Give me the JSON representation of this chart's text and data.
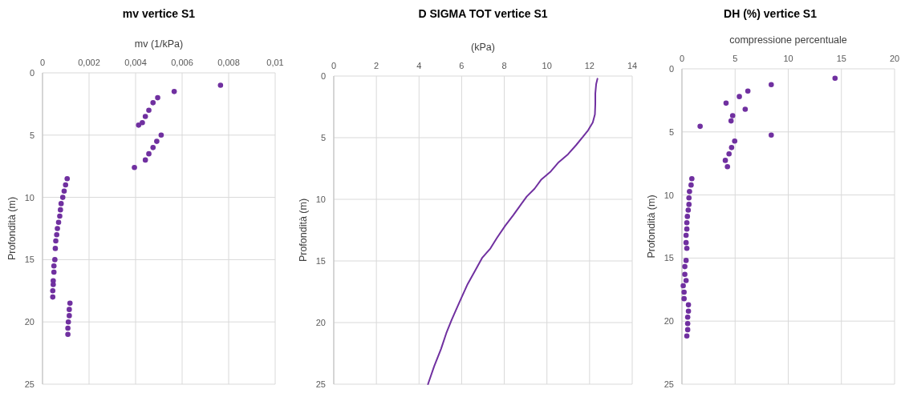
{
  "chart_data": [
    {
      "type": "scatter",
      "title": "mv vertice S1",
      "xlabel": "mv (1/kPa)",
      "ylabel": "Profondità (m)",
      "xlim": [
        0,
        0.01
      ],
      "xticks": [
        0,
        {
          "value": 0.002,
          "label": "0,002"
        },
        {
          "value": 0.004,
          "label": "0,004"
        },
        {
          "value": 0.006,
          "label": "0,006"
        },
        {
          "value": 0.008,
          "label": "0,008"
        },
        {
          "value": 0.01,
          "label": "0,01"
        }
      ],
      "ylim": [
        25,
        0
      ],
      "yticks": [
        0,
        5,
        10,
        15,
        20,
        25
      ],
      "grid": true,
      "marker": "circle",
      "series": [
        {
          "color": "#7030a0",
          "x": [
            0.00765,
            0.00566,
            0.00495,
            0.00475,
            0.00457,
            0.00442,
            0.00429,
            0.00413,
            0.0051,
            0.00491,
            0.00475,
            0.00457,
            0.00442,
            0.00395,
            0.00106,
            0.00099,
            0.00093,
            0.00087,
            0.0008,
            0.00077,
            0.00074,
            0.00069,
            0.00064,
            0.00061,
            0.00057,
            0.00055,
            0.00053,
            0.00049,
            0.00049,
            0.00046,
            0.00046,
            0.00044,
            0.00044,
            0.00118,
            0.00115,
            0.00115,
            0.00111,
            0.00109,
            0.00109
          ],
          "values": [
            1.0,
            1.5,
            2.0,
            2.4,
            3.0,
            3.5,
            4.0,
            4.2,
            5.0,
            5.5,
            6.0,
            6.5,
            7.0,
            7.6,
            8.5,
            9.0,
            9.5,
            10.0,
            10.5,
            11.0,
            11.5,
            12.0,
            12.5,
            13.0,
            13.5,
            14.1,
            15.0,
            15.5,
            16.0,
            16.7,
            17.0,
            17.5,
            18.0,
            18.5,
            19.0,
            19.5,
            20.0,
            20.5,
            21.0
          ]
        }
      ]
    },
    {
      "type": "line",
      "title": "D SIGMA TOT vertice S1",
      "xlabel": "(kPa)",
      "ylabel": "Profondità (m)",
      "xlim": [
        0,
        14
      ],
      "xticks": [
        0,
        2,
        4,
        6,
        8,
        10,
        12,
        14
      ],
      "ylim": [
        25,
        0
      ],
      "yticks": [
        0,
        5,
        10,
        15,
        20,
        25
      ],
      "grid": true,
      "series": [
        {
          "color": "#7030a0",
          "x": [
            12.37,
            12.31,
            12.27,
            12.27,
            12.25,
            12.15,
            11.93,
            11.68,
            11.37,
            10.99,
            10.55,
            10.18,
            9.74,
            9.42,
            9.05,
            8.73,
            8.42,
            8.04,
            7.66,
            7.35,
            6.97,
            6.66,
            6.28,
            5.97,
            5.72,
            5.53,
            5.28,
            5.03,
            4.71,
            4.42
          ],
          "values": [
            0.22,
            0.65,
            1.4,
            2.26,
            3.12,
            3.76,
            4.4,
            4.95,
            5.6,
            6.34,
            6.99,
            7.74,
            8.39,
            9.14,
            9.78,
            10.54,
            11.29,
            12.15,
            13.12,
            13.98,
            14.73,
            15.7,
            16.88,
            18.06,
            19.03,
            19.78,
            20.86,
            22.15,
            23.55,
            25.0
          ]
        }
      ]
    },
    {
      "type": "scatter",
      "title": "DH (%) vertice S1",
      "xlabel": "compressione percentuale",
      "ylabel": "Profondità (m)",
      "xlim": [
        0,
        20
      ],
      "xticks": [
        0,
        5,
        10,
        15,
        20
      ],
      "ylim": [
        25,
        0
      ],
      "yticks": [
        0,
        5,
        10,
        15,
        20,
        25
      ],
      "grid": true,
      "marker": "circle",
      "series": [
        {
          "color": "#7030a0",
          "x": [
            14.4,
            8.4,
            6.2,
            5.4,
            4.15,
            5.95,
            4.77,
            4.62,
            1.71,
            8.4,
            4.96,
            4.67,
            4.43,
            4.08,
            4.28,
            0.93,
            0.86,
            0.71,
            0.66,
            0.66,
            0.59,
            0.51,
            0.46,
            0.46,
            0.39,
            0.39,
            0.46,
            0.39,
            0.27,
            0.27,
            0.39,
            0.12,
            0.2,
            0.2,
            0.61,
            0.61,
            0.54,
            0.54,
            0.54,
            0.46
          ],
          "values": [
            0.75,
            1.25,
            1.76,
            2.2,
            2.72,
            3.2,
            3.71,
            4.13,
            4.56,
            5.25,
            5.73,
            6.24,
            6.74,
            7.26,
            7.76,
            8.71,
            9.21,
            9.73,
            10.23,
            10.75,
            11.2,
            11.7,
            12.2,
            12.7,
            13.2,
            13.78,
            14.23,
            15.19,
            15.68,
            16.29,
            16.78,
            17.2,
            17.7,
            18.22,
            18.71,
            19.21,
            19.69,
            20.19,
            20.68,
            21.18
          ]
        }
      ]
    }
  ]
}
